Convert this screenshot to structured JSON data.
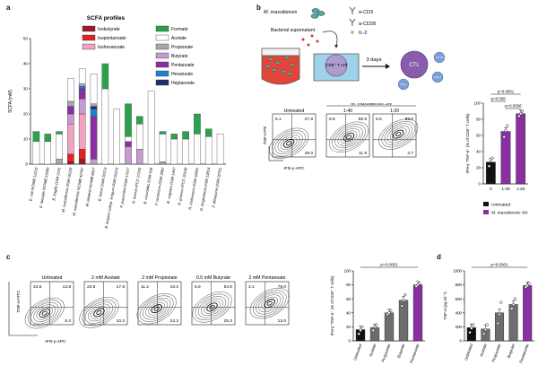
{
  "panels": {
    "a": "a",
    "b": "b",
    "c": "c",
    "d": "d"
  },
  "colors": {
    "Isobutyrate": "#9b1b2a",
    "Isopentanoate": "#e0231f",
    "Isohexanoate": "#f2a2c0",
    "Formate": "#2ba14b",
    "Acetate": "#ffffff",
    "Propionate": "#a8a8a8",
    "Butyrate": "#c59bd1",
    "Pentanoate": "#8a2fa1",
    "Hexanoate": "#1f7fd1",
    "Heptanoate": "#1e2f6b",
    "untreated": "#111111",
    "treated": "#8a2fa1",
    "gray": "#6d6d6d"
  },
  "chart_data": [
    {
      "type": "bar",
      "panel": "a",
      "title": "SCFA profiles",
      "ylabel": "SCFA (mM)",
      "ylim": [
        0,
        50
      ],
      "yticks": [
        0,
        10,
        20,
        30,
        40,
        50
      ],
      "legend": [
        "Isobutyrate",
        "Isopentanoate",
        "Isohexanoate",
        "Formate",
        "Acetate",
        "Propionate",
        "Butyrate",
        "Pentanoate",
        "Hexanoate",
        "Heptanoate"
      ],
      "categories": [
        "E. coli NCIMB 12210",
        "E. faecalis NCIMB 13280",
        "B. fragilis DSM 2151",
        "M. massiliensis DSM 26228",
        "M. massiliensis NCIMB 42787",
        "M. elsdenii NCIMB 8927",
        "B. breve DSM 20213",
        "B. longum subsp. longum DSM 20219",
        "F. prausnitzii DSM 17677",
        "R. bromii ATCC 27255",
        "B. coccoides DSM 935",
        "F. contortum DSM 3982",
        "B. vulgatus DSM 1447",
        "R. gnavus ATCC 29149",
        "R. inulivorans DSM 16841",
        "D. longicatena DSM 13814",
        "P. distasonis DSM 20701"
      ],
      "series": [
        {
          "name": "Isobutyrate",
          "values": [
            0,
            0,
            0,
            1,
            2,
            0,
            0,
            0,
            0,
            0,
            0,
            0,
            0,
            0,
            0,
            0,
            0
          ]
        },
        {
          "name": "Isopentanoate",
          "values": [
            0,
            0,
            0,
            3,
            4,
            0,
            0,
            0,
            0,
            0,
            0,
            0,
            0,
            0,
            0,
            0,
            0
          ]
        },
        {
          "name": "Isohexanoate",
          "values": [
            0,
            0,
            0,
            12,
            14,
            0,
            0,
            0,
            0,
            0,
            0,
            0,
            0,
            0,
            0,
            0,
            0
          ]
        },
        {
          "name": "Formate",
          "values": [
            4,
            3,
            1,
            0,
            0,
            0,
            10,
            0,
            13,
            3,
            0,
            1,
            2,
            3,
            8,
            3,
            0
          ]
        },
        {
          "name": "Acetate",
          "values": [
            9,
            9,
            10,
            9,
            6,
            12,
            30,
            22,
            2,
            10,
            29,
            11,
            10,
            10,
            12,
            11,
            12
          ]
        },
        {
          "name": "Propionate",
          "values": [
            0,
            0,
            2,
            2,
            1,
            1,
            0,
            0,
            0,
            0,
            0,
            1,
            0,
            0,
            0,
            0,
            0
          ]
        },
        {
          "name": "Butyrate",
          "values": [
            0,
            0,
            0,
            4,
            6,
            2,
            0,
            0,
            7,
            6,
            0,
            0,
            0,
            0,
            0,
            0,
            0
          ]
        },
        {
          "name": "Pentanoate",
          "values": [
            0,
            0,
            0,
            3,
            4,
            17,
            0,
            0,
            2,
            0,
            0,
            0,
            0,
            0,
            0,
            0,
            0
          ]
        },
        {
          "name": "Hexanoate",
          "values": [
            0,
            0,
            0,
            0,
            1,
            3,
            0,
            0,
            0,
            0,
            0,
            0,
            0,
            0,
            0,
            0,
            0
          ]
        },
        {
          "name": "Heptanoate",
          "values": [
            0,
            0,
            0,
            0,
            0,
            1,
            0,
            0,
            0,
            0,
            0,
            0,
            0,
            0,
            0,
            0,
            0
          ]
        }
      ]
    },
    {
      "type": "bar",
      "panel": "b",
      "categories": [
        "0",
        "1:40",
        "1:20"
      ],
      "values": [
        27,
        65,
        87
      ],
      "points": [
        [
          22,
          30,
          32
        ],
        [
          58,
          66,
          72
        ],
        [
          84,
          87,
          90
        ]
      ],
      "ylabel": "IFN-γ⁺TNF-α⁺ (% of CD8⁺ T cells)",
      "ylim": [
        0,
        100
      ],
      "yticks": [
        0,
        20,
        40,
        60,
        80,
        100
      ],
      "pvalues": [
        "p=0.0001",
        "p=0.008",
        "p=0.0006"
      ],
      "legend": [
        "Untreated",
        "M. massiliensis SN"
      ]
    },
    {
      "type": "bar",
      "panel": "c",
      "categories": [
        "Untreated",
        "Acetate",
        "Propionate",
        "Butyrate",
        "Pentanoate"
      ],
      "values": [
        16,
        19,
        40,
        58,
        80
      ],
      "points": [
        [
          10,
          15,
          20
        ],
        [
          15,
          20,
          23
        ],
        [
          38,
          40,
          43
        ],
        [
          50,
          58,
          66
        ],
        [
          78,
          80,
          82
        ]
      ],
      "ylabel": "IFN-γ⁺TNF-α⁺ (% of CD8⁺ T cells)",
      "ylim": [
        0,
        100
      ],
      "yticks": [
        0,
        20,
        40,
        60,
        80,
        100
      ],
      "pvalue": "p=0.0001"
    },
    {
      "type": "bar",
      "panel": "d",
      "categories": [
        "Untreated",
        "Acetate",
        "Propionate",
        "Butyrate",
        "Pentanoate"
      ],
      "values": [
        190,
        170,
        400,
        520,
        790
      ],
      "points": [
        [
          120,
          180,
          230
        ],
        [
          100,
          160,
          230
        ],
        [
          250,
          380,
          550
        ],
        [
          460,
          520,
          600
        ],
        [
          770,
          790,
          820
        ]
      ],
      "ylabel": "TNF-α (pg ml⁻¹)",
      "ylim": [
        0,
        1000
      ],
      "yticks": [
        0,
        200,
        400,
        600,
        800,
        1000
      ],
      "pvalue": "p=0.0001"
    }
  ],
  "b_schematic": {
    "organism": "M. massiliensis",
    "supernatant": "Bacterial supernatant",
    "stim": [
      "α-CD3",
      "α-CD28",
      "IL-2"
    ],
    "cell": "CD8⁺ T cell",
    "duration": "3 days",
    "ctl": "CTL",
    "cytokines": [
      "Grz B",
      "TNF-α",
      "IFN-γ"
    ]
  },
  "b_flow": {
    "group_label": "M. massiliensis SN",
    "ylabel": "TNF-α-PE",
    "xlabel": "IFN-γ-APC",
    "plots": [
      {
        "title": "Untreated",
        "tl": "6.1",
        "tr": "27.8",
        "br": "29.0"
      },
      {
        "title": "1:40",
        "tl": "8.8",
        "tr": "68.9",
        "br": "11.9"
      },
      {
        "title": "1:20",
        "tl": "5.5",
        "tr": "88.0",
        "br": "4.7"
      }
    ]
  },
  "c_flow": {
    "ylabel": "TNF-α-FITC",
    "xlabel": "IFN-γ-APC",
    "plots": [
      {
        "title": "Untreated",
        "tl": "23.5",
        "tr": "13.8",
        "br": "8.3"
      },
      {
        "title": "2 mM Acetate",
        "tl": "23.5",
        "tr": "17.9",
        "br": "10.3"
      },
      {
        "title": "2 mM Propionate",
        "tl": "11.2",
        "tr": "43.2",
        "br": "22.3"
      },
      {
        "title": "0.5 mM Butyrate",
        "tl": "5.9",
        "tr": "54.0",
        "br": "25.3"
      },
      {
        "title": "2 mM Pentanoate",
        "tl": "3.1",
        "tr": "79.0",
        "br": "13.0"
      }
    ]
  }
}
